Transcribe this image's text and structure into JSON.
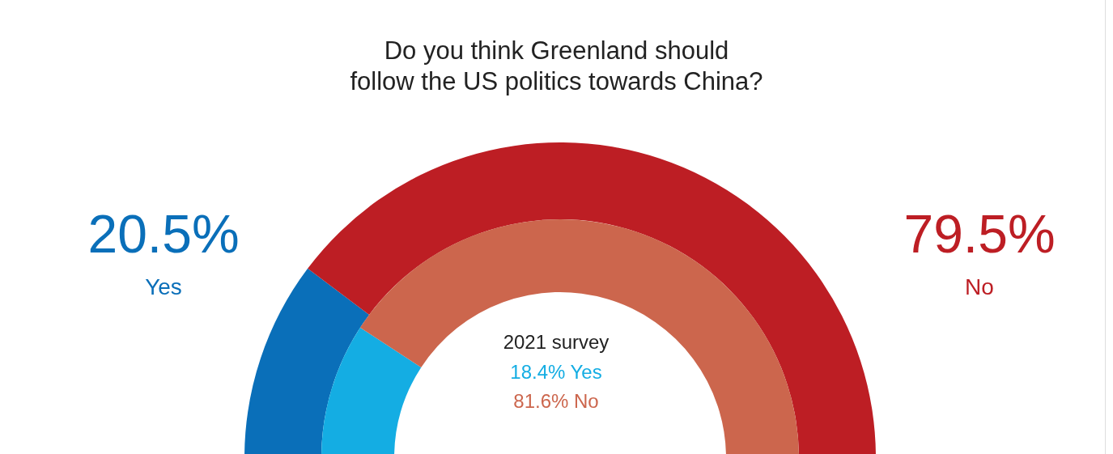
{
  "chart_data": {
    "type": "donut",
    "title": "Do you think Greenland should\nfollow the US politics towards China?",
    "categories": [
      "Yes",
      "No"
    ],
    "legend": false,
    "series": [
      {
        "values": [
          20.5,
          79.5
        ],
        "colors": [
          "#0a6fb9",
          "#bd1e24"
        ],
        "value_labels": [
          "20.5%",
          "79.5%"
        ]
      },
      {
        "name": "2021 survey",
        "values": [
          18.4,
          81.6
        ],
        "colors": [
          "#14ade3",
          "#cc664d"
        ]
      }
    ],
    "annotations": [
      "18.4% Yes",
      "81.6% No"
    ]
  }
}
